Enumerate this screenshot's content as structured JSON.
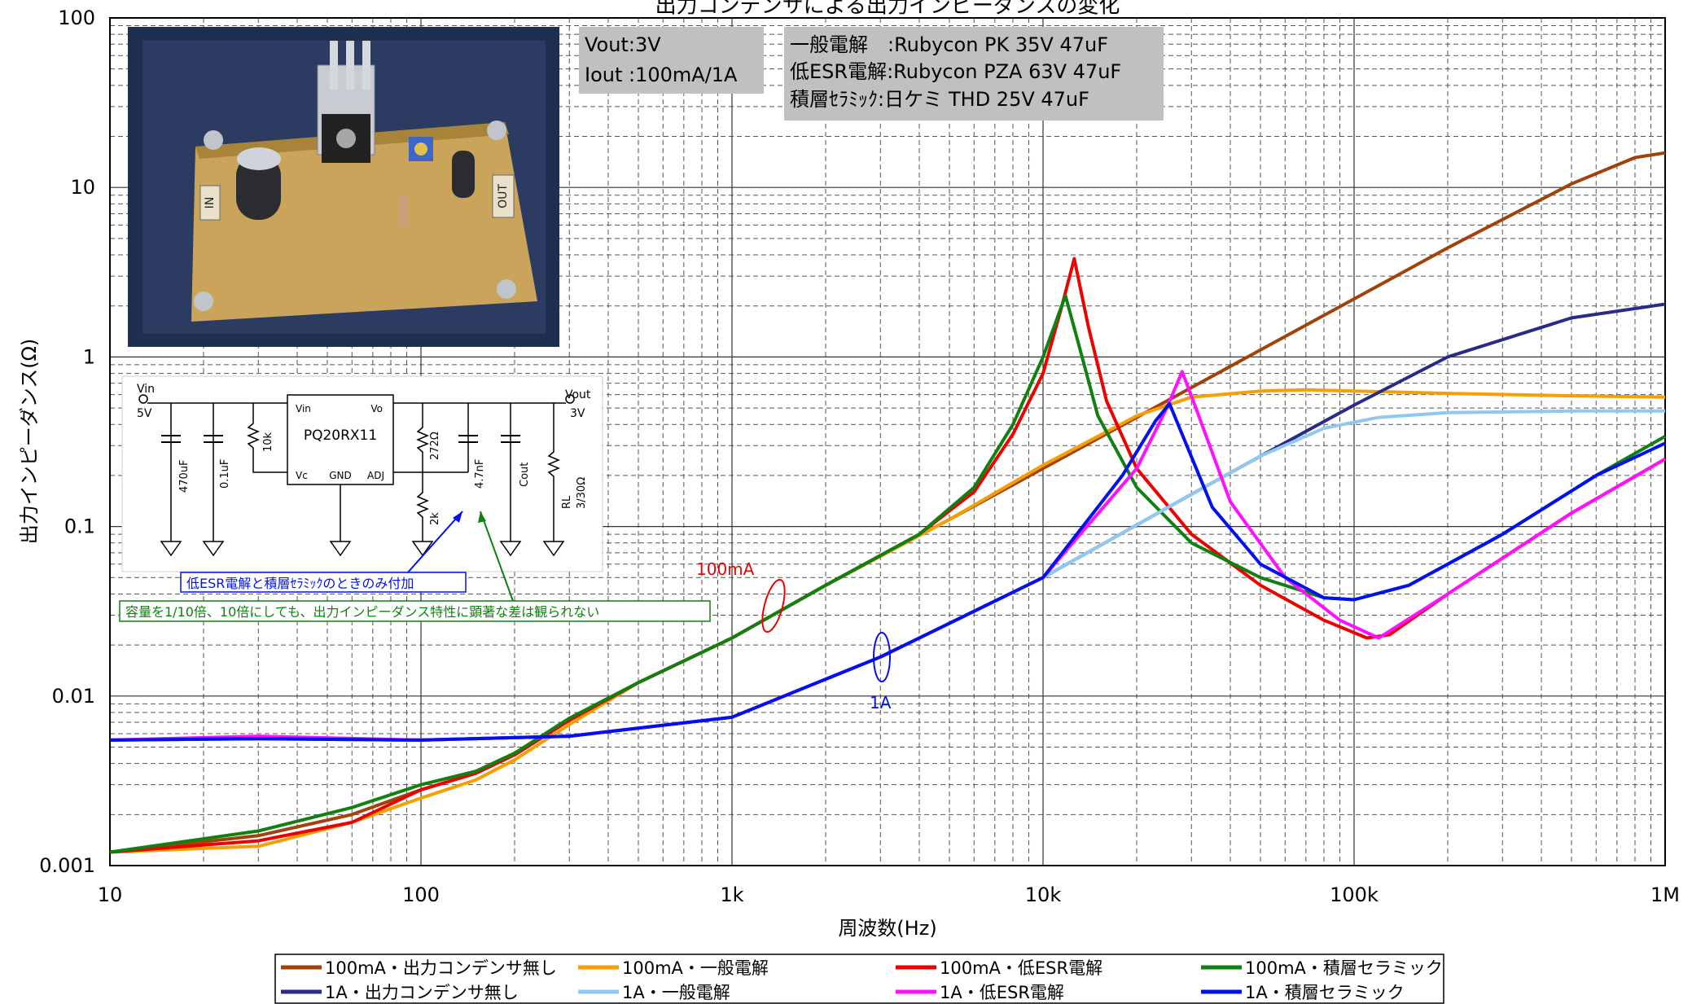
{
  "chart_data": {
    "type": "line",
    "title": "出力コンデンサによる出力インピーダンスの変化",
    "xlabel": "周波数(Hz)",
    "ylabel": "出力インピーダンス(Ω)",
    "x_scale": "log",
    "y_scale": "log",
    "xlim": [
      10,
      1000000
    ],
    "ylim": [
      0.001,
      100
    ],
    "x_ticks": [
      {
        "value": 10,
        "label": "10"
      },
      {
        "value": 100,
        "label": "100"
      },
      {
        "value": 1000,
        "label": "1k"
      },
      {
        "value": 10000,
        "label": "10k"
      },
      {
        "value": 100000,
        "label": "100k"
      },
      {
        "value": 1000000,
        "label": "1M"
      }
    ],
    "y_ticks": [
      {
        "value": 0.001,
        "label": "0.001"
      },
      {
        "value": 0.01,
        "label": "0.01"
      },
      {
        "value": 0.1,
        "label": "0.1"
      },
      {
        "value": 1,
        "label": "1"
      },
      {
        "value": 10,
        "label": "10"
      },
      {
        "value": 100,
        "label": "100"
      }
    ],
    "grid": true,
    "legend_position": "bottom",
    "series": [
      {
        "name": "100mA・出力コンデンサ無し",
        "color": "#a0420a",
        "points": [
          [
            10,
            0.0012
          ],
          [
            30,
            0.0015
          ],
          [
            60,
            0.002
          ],
          [
            100,
            0.0028
          ],
          [
            150,
            0.0035
          ],
          [
            200,
            0.0045
          ],
          [
            300,
            0.0072
          ],
          [
            500,
            0.012
          ],
          [
            1000,
            0.022
          ],
          [
            2000,
            0.045
          ],
          [
            5000,
            0.11
          ],
          [
            10000,
            0.22
          ],
          [
            20000,
            0.44
          ],
          [
            50000,
            1.1
          ],
          [
            100000,
            2.2
          ],
          [
            200000,
            4.4
          ],
          [
            500000,
            10.5
          ],
          [
            800000,
            15
          ],
          [
            1000000,
            16
          ]
        ]
      },
      {
        "name": "100mA・一般電解",
        "color": "#f5a000",
        "points": [
          [
            10,
            0.0012
          ],
          [
            30,
            0.0013
          ],
          [
            60,
            0.0018
          ],
          [
            100,
            0.0025
          ],
          [
            150,
            0.0032
          ],
          [
            200,
            0.0042
          ],
          [
            300,
            0.0068
          ],
          [
            500,
            0.012
          ],
          [
            1000,
            0.022
          ],
          [
            2000,
            0.045
          ],
          [
            5000,
            0.11
          ],
          [
            10000,
            0.23
          ],
          [
            15000,
            0.34
          ],
          [
            20000,
            0.45
          ],
          [
            30000,
            0.58
          ],
          [
            50000,
            0.63
          ],
          [
            70000,
            0.64
          ],
          [
            100000,
            0.63
          ],
          [
            200000,
            0.61
          ],
          [
            500000,
            0.59
          ],
          [
            1000000,
            0.58
          ]
        ]
      },
      {
        "name": "100mA・低ESR電解",
        "color": "#ee0000",
        "points": [
          [
            10,
            0.0012
          ],
          [
            30,
            0.0014
          ],
          [
            60,
            0.0018
          ],
          [
            100,
            0.0028
          ],
          [
            150,
            0.0035
          ],
          [
            200,
            0.0045
          ],
          [
            300,
            0.0072
          ],
          [
            500,
            0.012
          ],
          [
            1000,
            0.022
          ],
          [
            2000,
            0.045
          ],
          [
            4000,
            0.09
          ],
          [
            6000,
            0.16
          ],
          [
            8000,
            0.35
          ],
          [
            10000,
            0.8
          ],
          [
            11500,
            2.0
          ],
          [
            12600,
            3.8
          ],
          [
            14000,
            1.5
          ],
          [
            16000,
            0.55
          ],
          [
            20000,
            0.22
          ],
          [
            30000,
            0.09
          ],
          [
            50000,
            0.045
          ],
          [
            80000,
            0.028
          ],
          [
            110000,
            0.022
          ],
          [
            130000,
            0.023
          ],
          [
            200000,
            0.04
          ],
          [
            500000,
            0.12
          ],
          [
            1000000,
            0.25
          ]
        ]
      },
      {
        "name": "100mA・積層セラミック",
        "color": "#108010",
        "points": [
          [
            10,
            0.0012
          ],
          [
            30,
            0.0016
          ],
          [
            60,
            0.0022
          ],
          [
            100,
            0.003
          ],
          [
            150,
            0.0036
          ],
          [
            200,
            0.0046
          ],
          [
            300,
            0.0074
          ],
          [
            500,
            0.012
          ],
          [
            1000,
            0.022
          ],
          [
            2000,
            0.045
          ],
          [
            4000,
            0.09
          ],
          [
            6000,
            0.17
          ],
          [
            8000,
            0.4
          ],
          [
            10000,
            1.0
          ],
          [
            11800,
            2.3
          ],
          [
            13000,
            1.2
          ],
          [
            15000,
            0.45
          ],
          [
            20000,
            0.17
          ],
          [
            30000,
            0.08
          ],
          [
            50000,
            0.05
          ],
          [
            80000,
            0.038
          ],
          [
            100000,
            0.037
          ],
          [
            150000,
            0.045
          ],
          [
            300000,
            0.09
          ],
          [
            600000,
            0.2
          ],
          [
            1000000,
            0.34
          ]
        ]
      },
      {
        "name": "1A・出力コンデンサ無し",
        "color": "#2a2a88",
        "points": [
          [
            10,
            0.0055
          ],
          [
            30,
            0.0056
          ],
          [
            100,
            0.0055
          ],
          [
            300,
            0.0058
          ],
          [
            1000,
            0.0075
          ],
          [
            3000,
            0.017
          ],
          [
            10000,
            0.05
          ],
          [
            30000,
            0.155
          ],
          [
            50000,
            0.26
          ],
          [
            100000,
            0.52
          ],
          [
            200000,
            1.0
          ],
          [
            500000,
            1.7
          ],
          [
            1000000,
            2.05
          ]
        ]
      },
      {
        "name": "1A・一般電解",
        "color": "#90c8f0",
        "points": [
          [
            10,
            0.0055
          ],
          [
            30,
            0.0056
          ],
          [
            100,
            0.0055
          ],
          [
            300,
            0.0058
          ],
          [
            1000,
            0.0075
          ],
          [
            3000,
            0.017
          ],
          [
            10000,
            0.05
          ],
          [
            30000,
            0.155
          ],
          [
            50000,
            0.26
          ],
          [
            80000,
            0.38
          ],
          [
            120000,
            0.44
          ],
          [
            200000,
            0.47
          ],
          [
            500000,
            0.48
          ],
          [
            1000000,
            0.48
          ]
        ]
      },
      {
        "name": "1A・低ESR電解",
        "color": "#ff10ff",
        "points": [
          [
            10,
            0.0055
          ],
          [
            30,
            0.0058
          ],
          [
            100,
            0.0055
          ],
          [
            300,
            0.0058
          ],
          [
            1000,
            0.0075
          ],
          [
            3000,
            0.017
          ],
          [
            10000,
            0.05
          ],
          [
            20000,
            0.22
          ],
          [
            25000,
            0.5
          ],
          [
            28000,
            0.82
          ],
          [
            31000,
            0.5
          ],
          [
            40000,
            0.14
          ],
          [
            60000,
            0.05
          ],
          [
            90000,
            0.028
          ],
          [
            120000,
            0.022
          ],
          [
            200000,
            0.04
          ],
          [
            500000,
            0.12
          ],
          [
            1000000,
            0.25
          ]
        ]
      },
      {
        "name": "1A・積層セラミック",
        "color": "#0010f0",
        "points": [
          [
            10,
            0.0055
          ],
          [
            30,
            0.0056
          ],
          [
            100,
            0.0055
          ],
          [
            300,
            0.0058
          ],
          [
            1000,
            0.0075
          ],
          [
            3000,
            0.017
          ],
          [
            10000,
            0.05
          ],
          [
            18000,
            0.2
          ],
          [
            23000,
            0.42
          ],
          [
            25500,
            0.53
          ],
          [
            28000,
            0.35
          ],
          [
            35000,
            0.13
          ],
          [
            50000,
            0.06
          ],
          [
            80000,
            0.038
          ],
          [
            100000,
            0.037
          ],
          [
            150000,
            0.045
          ],
          [
            300000,
            0.09
          ],
          [
            600000,
            0.2
          ],
          [
            1000000,
            0.31
          ]
        ]
      }
    ]
  },
  "info_box_vout": {
    "line1": "Vout:3V",
    "line2": "Iout :100mA/1A"
  },
  "info_box_caps": {
    "line1": "一般電解　:Rubycon PK 35V 47uF",
    "line2": "低ESR電解:Rubycon PZA 63V 47uF",
    "line3": "積層ｾﾗﾐｯｸ:日ケミ THD 25V 47uF"
  },
  "annotations": {
    "label_100ma": "100mA",
    "label_1a": "1A",
    "note_blue": "低ESR電解と積層ｾﾗﾐｯｸのときのみ付加",
    "note_green": "容量を1/10倍、10倍にしても、出力インピーダンス特性に顕著な差は観られない"
  },
  "schematic": {
    "vin": "Vin",
    "vin_v": "5V",
    "vout": "Vout",
    "vout_v": "3V",
    "ic_name": "PQ20RX11",
    "pin_vin": "Vin",
    "pin_vo": "Vo",
    "pin_vc": "Vc",
    "pin_gnd": "GND",
    "pin_adj": "ADJ",
    "c1": "470uF",
    "c2": "0.1uF",
    "r1": "10k",
    "r2": "272Ω",
    "r3": "2k",
    "c3": "4.7nF",
    "cout": "Cout",
    "rl": "RL",
    "rl_v": "3/30Ω"
  },
  "photo": {
    "label_in": "IN",
    "label_out": "OUT"
  }
}
